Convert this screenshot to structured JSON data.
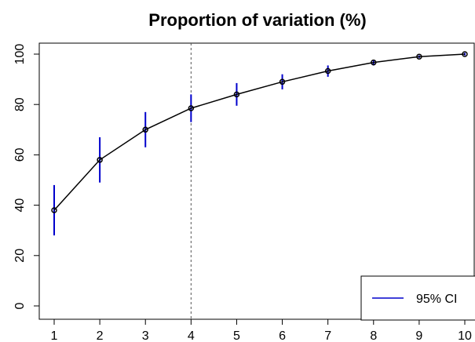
{
  "chart_data": {
    "type": "line",
    "title": "Proportion of variation (%)",
    "xlabel": "",
    "ylabel": "",
    "x": [
      1,
      2,
      3,
      4,
      5,
      6,
      7,
      8,
      9,
      10
    ],
    "x_tick_labels": [
      "1",
      "2",
      "3",
      "4",
      "5",
      "6",
      "7",
      "8",
      "9",
      "10"
    ],
    "y_tick_values": [
      0,
      20,
      40,
      60,
      80,
      100
    ],
    "y_tick_labels": [
      "0",
      "20",
      "40",
      "60",
      "80",
      "100"
    ],
    "xlim": [
      1,
      10
    ],
    "ylim": [
      0,
      100
    ],
    "grid": false,
    "series": [
      {
        "values": [
          38,
          58,
          70,
          78.5,
          84,
          89,
          93.3,
          96.7,
          99,
          100
        ],
        "ci_lower": [
          28,
          49,
          63,
          73,
          79.5,
          86,
          91,
          95.5,
          98.5,
          99.5
        ],
        "ci_upper": [
          48,
          67,
          77,
          84,
          88.5,
          92,
          95.5,
          97.5,
          99.5,
          100.5
        ],
        "line_color": "#000000",
        "ci_color": "#0000cc"
      }
    ],
    "vline": {
      "x": 4,
      "style": "dashed"
    },
    "legend": {
      "position": "bottom-right",
      "entries": [
        "95% CI"
      ]
    }
  }
}
